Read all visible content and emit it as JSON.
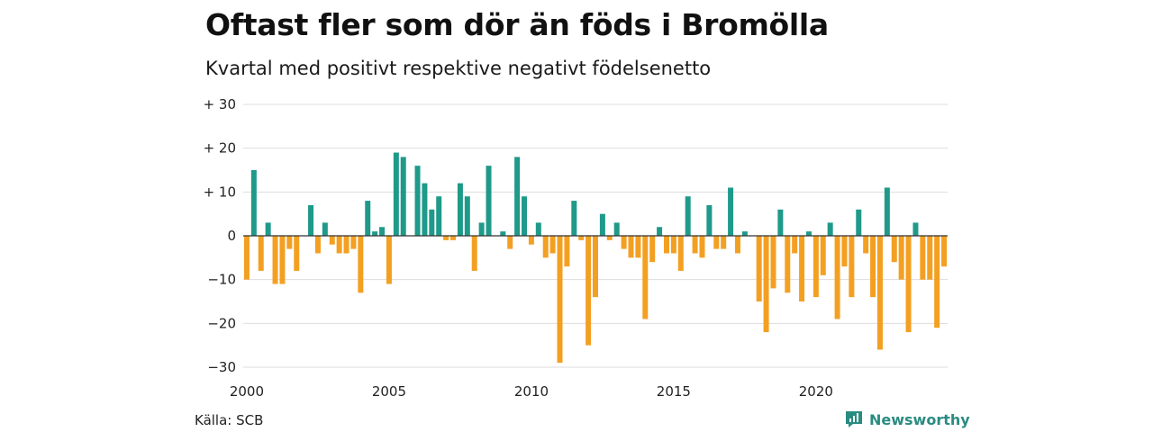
{
  "title": "Oftast fler som dör än föds i Bromölla",
  "subtitle": "Kvartal med positivt respektive negativt födelsenetto",
  "source": "Källa: SCB",
  "brand": {
    "name": "Newsworthy",
    "icon": "newsworthy-logo-icon"
  },
  "colors": {
    "positive": "#1f9a8a",
    "negative": "#f3a022",
    "grid": "#dddddd",
    "zero": "#333333"
  },
  "chart_data": {
    "type": "bar",
    "title": "Oftast fler som dör än föds i Bromölla",
    "subtitle": "Kvartal med positivt respektive negativt födelsenetto",
    "xlabel": "",
    "ylabel": "",
    "x_start": 2000,
    "periods_per_year": 4,
    "x_ticks": [
      2000,
      2005,
      2010,
      2015,
      2020
    ],
    "x_tick_labels": [
      "2000",
      "2005",
      "2010",
      "2015",
      "2020"
    ],
    "y_ticks": [
      30,
      20,
      10,
      0,
      -10,
      -20,
      -30
    ],
    "y_tick_labels": [
      "+ 30",
      "+ 20",
      "+ 10",
      "0",
      "−10",
      "−20",
      "−30"
    ],
    "ylim": [
      -30,
      30
    ],
    "grid": true,
    "legend": "none",
    "values": [
      -10,
      15,
      -8,
      3,
      -11,
      -11,
      -3,
      -8,
      0,
      7,
      -4,
      3,
      -2,
      -4,
      -4,
      -3,
      -13,
      8,
      1,
      2,
      -11,
      19,
      18,
      0,
      16,
      12,
      6,
      9,
      -1,
      -1,
      12,
      9,
      -8,
      3,
      16,
      0,
      1,
      -3,
      18,
      9,
      -2,
      3,
      -5,
      -4,
      -29,
      -7,
      8,
      -1,
      -25,
      -14,
      5,
      -1,
      3,
      -3,
      -5,
      -5,
      -19,
      -6,
      2,
      -4,
      -4,
      -8,
      9,
      -4,
      -5,
      7,
      -3,
      -3,
      11,
      -4,
      1,
      0,
      -15,
      -22,
      -12,
      6,
      -13,
      -4,
      -15,
      1,
      -14,
      -9,
      3,
      -19,
      -7,
      -14,
      6,
      -4,
      -14,
      -26,
      11,
      -6,
      -10,
      -22,
      3,
      -10,
      -10,
      -21,
      -7
    ]
  }
}
